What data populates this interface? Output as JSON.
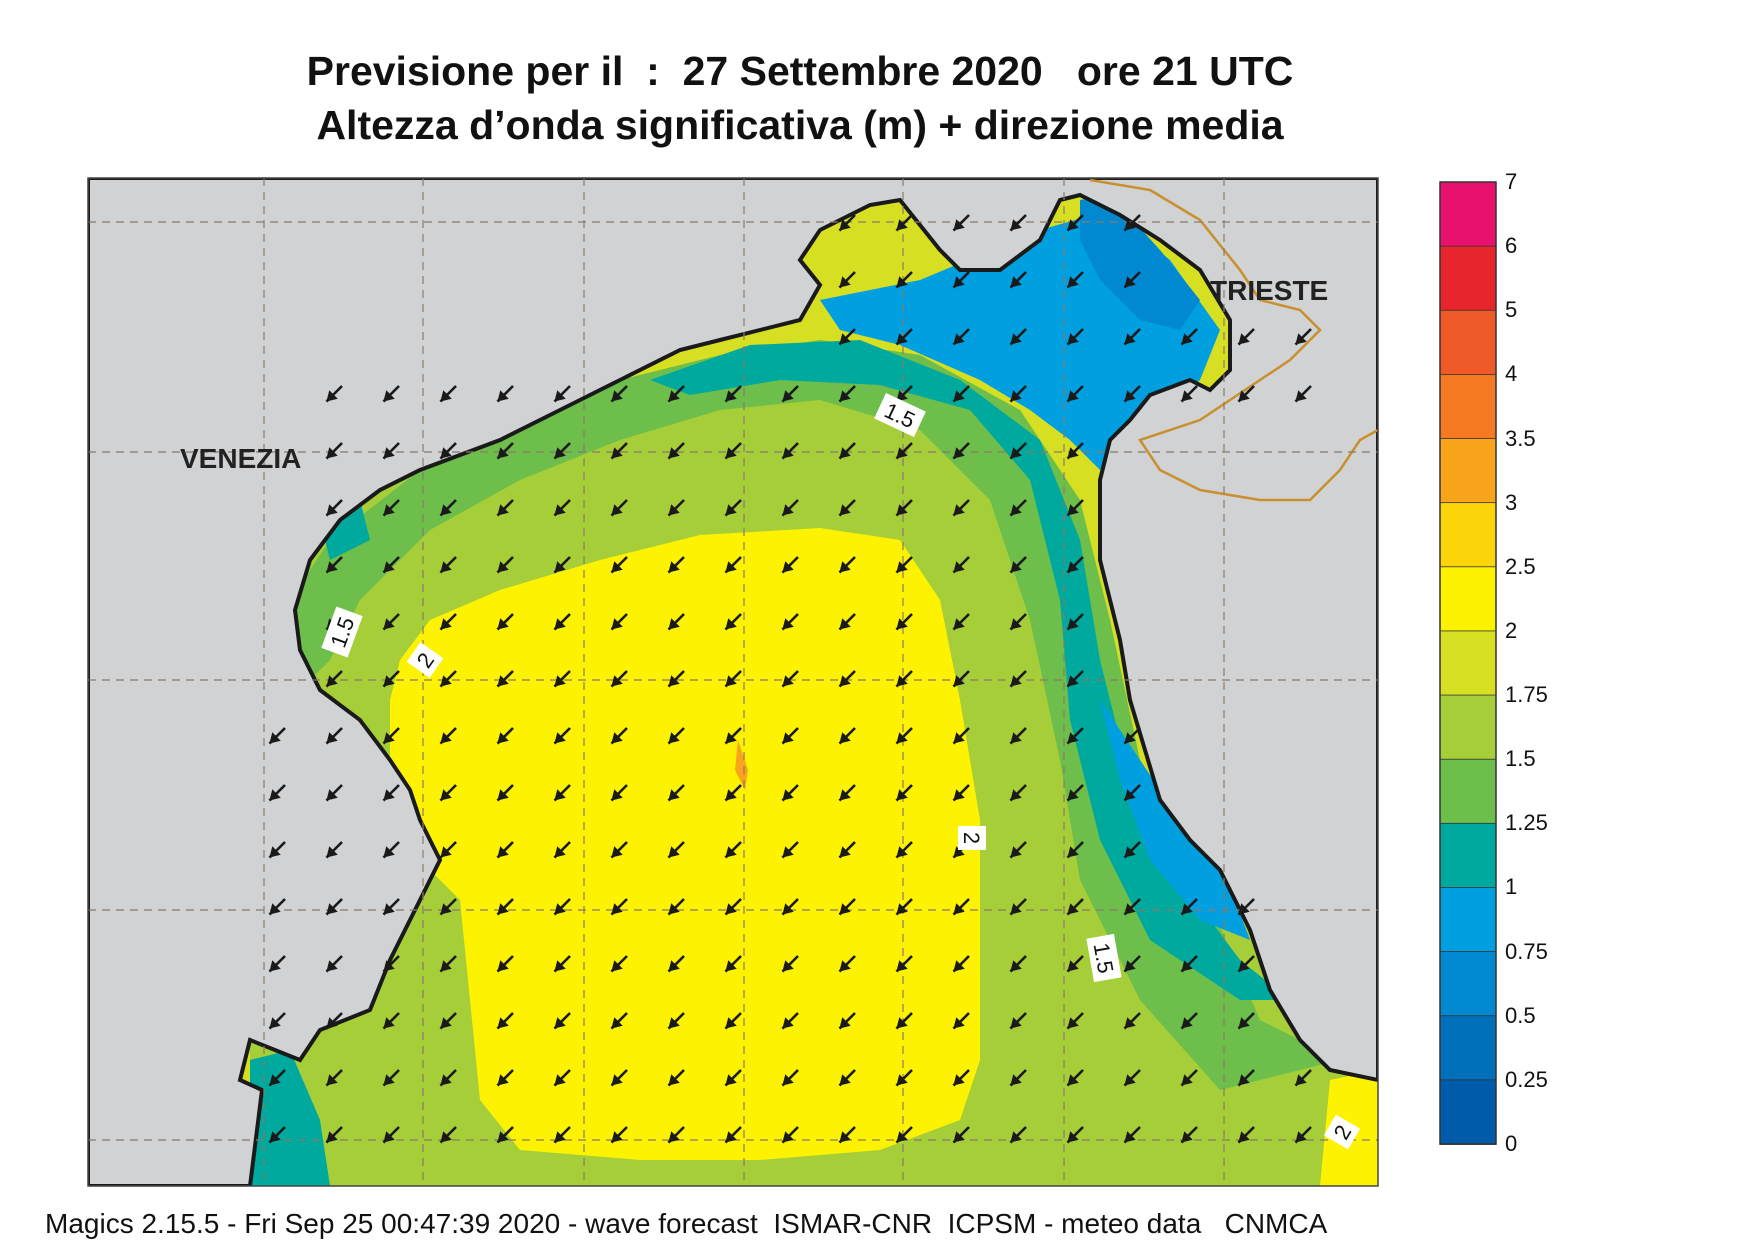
{
  "title": {
    "line1": "Previsione per il  :  27 Settembre 2020   ore 21 UTC",
    "line2": "Altezza d’onda significativa (m) + direzione media"
  },
  "places": [
    {
      "name": "VENEZIA",
      "key": "venezia"
    },
    {
      "name": "TRIESTE",
      "key": "trieste"
    }
  ],
  "contour_labels": [
    "1.5",
    "1.5",
    "2",
    "2",
    "1.5",
    "2"
  ],
  "colorbar": {
    "ticks": [
      "7",
      "6",
      "5",
      "4",
      "3.5",
      "3",
      "2.5",
      "2",
      "1.75",
      "1.5",
      "1.25",
      "1",
      "0.75",
      "0.5",
      "0.25",
      "0"
    ],
    "colors": [
      "#e8126e",
      "#e8242c",
      "#f05a28",
      "#f47920",
      "#f9a51b",
      "#fbd40a",
      "#fdf200",
      "#d7df23",
      "#a6ce39",
      "#6dbe4b",
      "#00a99d",
      "#009fdf",
      "#0088d0",
      "#0070bb",
      "#005baa"
    ]
  },
  "colors": {
    "land": "#d0d2d3",
    "coast": "#1a1a1a",
    "border": "#c8902e",
    "grid": "#8a7a6a",
    "arrow": "#1a1a1a"
  },
  "mean_direction": "from NE (arrows toward SW)",
  "footer": "Magics 2.15.5 - Fri Sep 25 00:47:39 2020 - wave forecast  ISMAR-CNR  ICPSM - meteo data   CNMCA"
}
